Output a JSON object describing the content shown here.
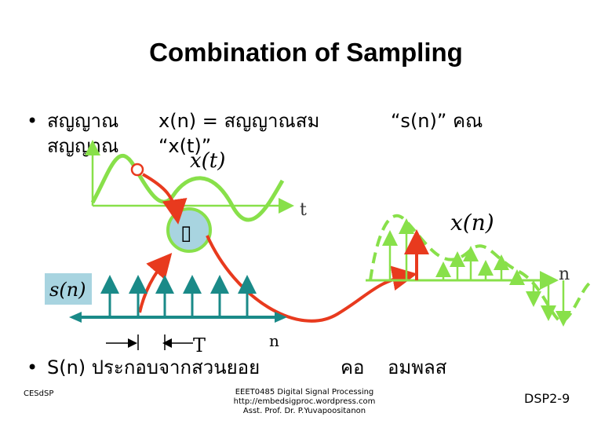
{
  "title": "Combination of Sampling",
  "bullets": {
    "b1_line1_a": "สญญาณ",
    "b1_line1_b": "x(n) = สญญาณสม",
    "b1_line1_c": "“s(n)” คณ",
    "b1_line2_a": "สญญาณ",
    "b1_line2_b": "“x(t)”",
    "b2": "S(n) ประกอบจากสวนยอย",
    "b2_c": "คอ",
    "b2_d": "อมพลส",
    "bullet_symbol": "•"
  },
  "figure": {
    "label_xt": "x(t)",
    "label_t": "t",
    "label_xn": "x(n)",
    "label_n_right": "n",
    "label_sn": "s(n)",
    "label_T": "T",
    "label_n_bottom": "n",
    "box_glyph": "▯",
    "colors": {
      "signal_green": "#88e04a",
      "arrow_red": "#e83a1e",
      "teal": "#1a8a88",
      "box_fill": "#a8d4e0"
    }
  },
  "footer": {
    "left": "CESdSP",
    "mid_line1": "EEET0485 Digital Signal Processing",
    "mid_line2": "http://embedsigproc.wordpress.com",
    "mid_line3": "Asst. Prof. Dr. P.Yuvapoositanon",
    "right": "DSP2-9"
  }
}
